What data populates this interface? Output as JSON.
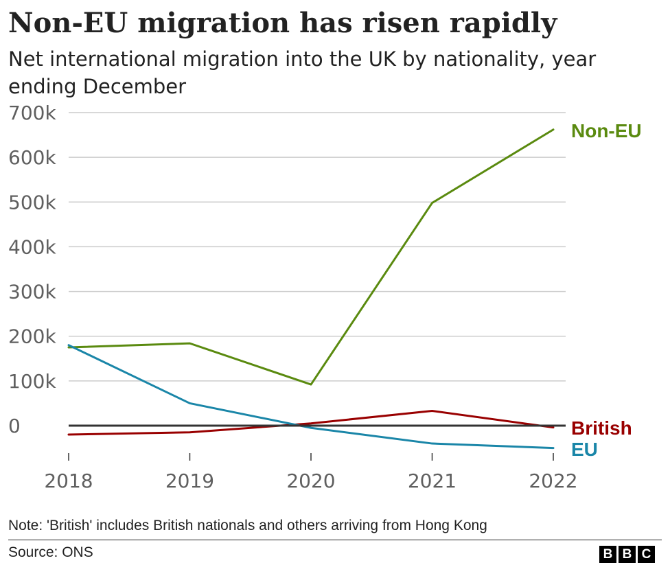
{
  "chart_data": {
    "type": "line",
    "title": "Non-EU migration has risen rapidly",
    "subtitle": "Net international migration into the UK by nationality, year ending December",
    "x": [
      "2018",
      "2019",
      "2020",
      "2021",
      "2022"
    ],
    "ylim": [
      -50000,
      700000
    ],
    "yticks": [
      0,
      100000,
      200000,
      300000,
      400000,
      500000,
      600000,
      700000
    ],
    "ytick_labels": [
      "0",
      "100k",
      "200k",
      "300k",
      "400k",
      "500k",
      "600k",
      "700k"
    ],
    "series": [
      {
        "name": "Non-EU",
        "color": "#5a8a0f",
        "values": [
          175000,
          184000,
          92000,
          498000,
          662000
        ]
      },
      {
        "name": "British",
        "color": "#990000",
        "values": [
          -20000,
          -15000,
          5000,
          33000,
          -4000
        ]
      },
      {
        "name": "EU",
        "color": "#1a86a8",
        "values": [
          180000,
          50000,
          -5000,
          -40000,
          -50000
        ]
      }
    ],
    "grid": true,
    "legend": "inline-right"
  },
  "note": "Note: 'British' includes British nationals and others arriving from Hong Kong",
  "source": "Source: ONS",
  "logo": [
    "B",
    "B",
    "C"
  ]
}
